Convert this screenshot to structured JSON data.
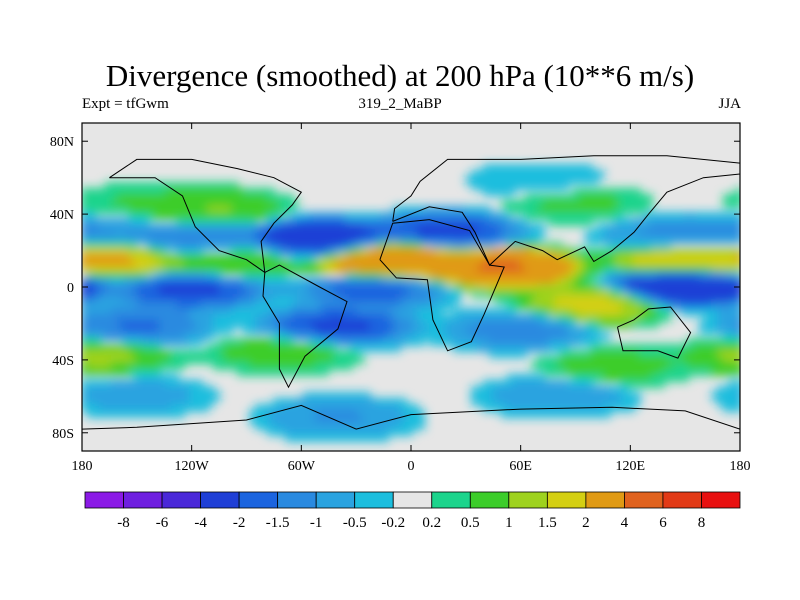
{
  "chart_data": {
    "type": "heatmap",
    "title": "Divergence (smoothed) at 200 hPa (10**6 m/s)",
    "left_string": "Expt = tfGwm",
    "center_string": "319_2_MaBP",
    "right_string": "JJA",
    "x_axis": {
      "ticks": [
        {
          "value": -180,
          "label": "180"
        },
        {
          "value": -120,
          "label": "120W"
        },
        {
          "value": -60,
          "label": "60W"
        },
        {
          "value": 0,
          "label": "0"
        },
        {
          "value": 60,
          "label": "60E"
        },
        {
          "value": 120,
          "label": "120E"
        },
        {
          "value": 180,
          "label": "180"
        }
      ],
      "range": [
        -180,
        180
      ]
    },
    "y_axis": {
      "ticks": [
        {
          "value": 80,
          "label": "80N"
        },
        {
          "value": 40,
          "label": "40N"
        },
        {
          "value": 0,
          "label": "0"
        },
        {
          "value": -40,
          "label": "40S"
        },
        {
          "value": -80,
          "label": "80S"
        }
      ],
      "range": [
        -90,
        90
      ]
    },
    "contour_levels": [
      "-8",
      "-6",
      "-4",
      "-2",
      "-1.5",
      "-1",
      "-0.5",
      "-0.2",
      "0.2",
      "0.5",
      "1",
      "1.5",
      "2",
      "4",
      "6",
      "8"
    ],
    "colors": [
      "#8b1ae6",
      "#6f1fe0",
      "#4a28d8",
      "#1f3fd6",
      "#1b64df",
      "#2a8ae0",
      "#2aa3e0",
      "#1cbede",
      "#e6e6e6",
      "#1cd48c",
      "#3ccd2a",
      "#9ed21e",
      "#d4cf12",
      "#e09a14",
      "#e0621e",
      "#e23a16",
      "#e81010"
    ],
    "background_color": "#e6e6e6",
    "coastline_color": "#000000",
    "fields": [
      {
        "lat": 45,
        "lon": -150,
        "value": 0.6
      },
      {
        "lat": 43,
        "lon": -110,
        "value": 1.2
      },
      {
        "lat": 46,
        "lon": 90,
        "value": 0.7
      },
      {
        "lat": 58,
        "lon": 70,
        "value": -0.5
      },
      {
        "lat": 30,
        "lon": -170,
        "value": -1.2
      },
      {
        "lat": 25,
        "lon": -120,
        "value": -1.7
      },
      {
        "lat": 26,
        "lon": -50,
        "value": -3.5
      },
      {
        "lat": 30,
        "lon": 20,
        "value": -2.5
      },
      {
        "lat": 28,
        "lon": 145,
        "value": -1.3
      },
      {
        "lat": 15,
        "lon": -160,
        "value": 2.5
      },
      {
        "lat": 14,
        "lon": -100,
        "value": 1.2
      },
      {
        "lat": 14,
        "lon": -10,
        "value": 4.5
      },
      {
        "lat": 10,
        "lon": 50,
        "value": 4.8
      },
      {
        "lat": 14,
        "lon": 150,
        "value": 2.5
      },
      {
        "lat": -2,
        "lon": -120,
        "value": -2.5
      },
      {
        "lat": -2,
        "lon": -20,
        "value": -2.0
      },
      {
        "lat": 0,
        "lon": 150,
        "value": -4.5
      },
      {
        "lat": -10,
        "lon": 100,
        "value": 2.0
      },
      {
        "lat": -22,
        "lon": -150,
        "value": -1.8
      },
      {
        "lat": -22,
        "lon": -40,
        "value": -2.5
      },
      {
        "lat": -24,
        "lon": 60,
        "value": -1.5
      },
      {
        "lat": -38,
        "lon": -170,
        "value": 1.3
      },
      {
        "lat": -36,
        "lon": -70,
        "value": 0.9
      },
      {
        "lat": -44,
        "lon": 110,
        "value": 0.8
      },
      {
        "lat": -60,
        "lon": -150,
        "value": -0.8
      },
      {
        "lat": -60,
        "lon": 80,
        "value": -1.0
      },
      {
        "lat": -72,
        "lon": -40,
        "value": -1.2
      }
    ]
  }
}
